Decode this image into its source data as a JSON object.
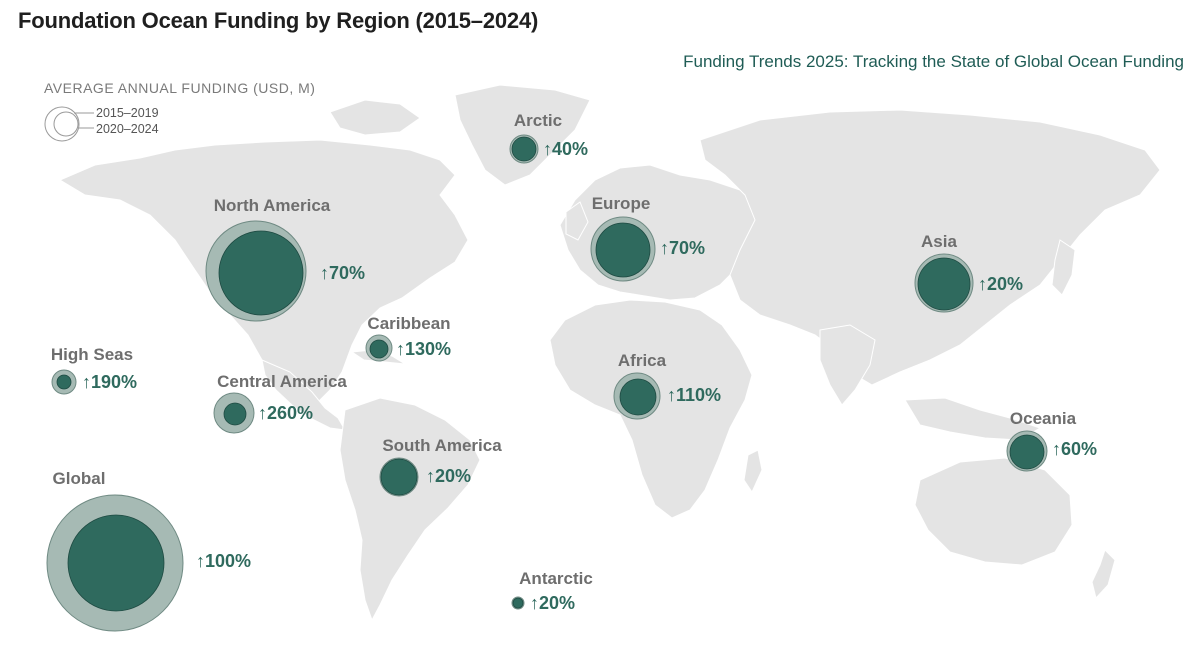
{
  "title": "Foundation Ocean Funding by Region (2015–2024)",
  "subtitle": "Funding Trends 2025: Tracking the State of Global Ocean Funding",
  "legend": {
    "title": "AVERAGE ANNUAL FUNDING (USD, M)",
    "period_old": "2015–2019",
    "period_new": "2020–2024"
  },
  "colors": {
    "land": "#e4e4e4",
    "outer_circle": "#a6bab4",
    "inner_circle": "#2f6a5e",
    "pct_text": "#2f6a5e",
    "name_text": "#6e6e6e"
  },
  "regions": [
    {
      "id": "north-america",
      "name": "North America",
      "change": "↑70%"
    },
    {
      "id": "arctic",
      "name": "Arctic",
      "change": "↑40%"
    },
    {
      "id": "europe",
      "name": "Europe",
      "change": "↑70%"
    },
    {
      "id": "asia",
      "name": "Asia",
      "change": "↑20%"
    },
    {
      "id": "caribbean",
      "name": "Caribbean",
      "change": "↑130%"
    },
    {
      "id": "high-seas",
      "name": "High Seas",
      "change": "↑190%"
    },
    {
      "id": "central-america",
      "name": "Central America",
      "change": "↑260%"
    },
    {
      "id": "africa",
      "name": "Africa",
      "change": "↑110%"
    },
    {
      "id": "oceania",
      "name": "Oceania",
      "change": "↑60%"
    },
    {
      "id": "south-america",
      "name": "South America",
      "change": "↑20%"
    },
    {
      "id": "global",
      "name": "Global",
      "change": "↑100%"
    },
    {
      "id": "antarctic",
      "name": "Antarctic",
      "change": "↑20%"
    }
  ]
}
